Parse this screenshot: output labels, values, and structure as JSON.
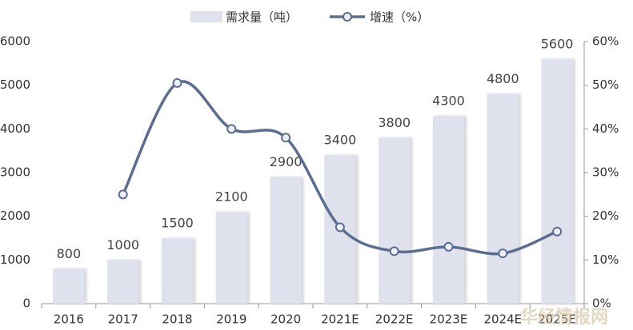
{
  "chart_data": {
    "type": "bar-line",
    "categories": [
      "2016",
      "2017",
      "2018",
      "2019",
      "2020",
      "2021E",
      "2022E",
      "2023E",
      "2024E",
      "2025E"
    ],
    "series": [
      {
        "name": "需求量（吨）",
        "type": "bar",
        "color": "#dfe1ec",
        "values": [
          800,
          1000,
          1500,
          2100,
          2900,
          3400,
          3800,
          4300,
          4800,
          5600
        ]
      },
      {
        "name": "增速（%）",
        "type": "line",
        "color": "#5b6e91",
        "axis": "y2",
        "values": [
          null,
          25,
          50.5,
          40,
          38,
          17.5,
          12,
          13,
          11.5,
          16.5
        ]
      }
    ],
    "ylim": [
      0,
      6000
    ],
    "yticks": [
      0,
      1000,
      2000,
      3000,
      4000,
      5000,
      6000
    ],
    "y2lim": [
      0,
      60
    ],
    "y2ticks": [
      {
        "value": 0,
        "label": "0%"
      },
      {
        "value": 10,
        "label": "10%"
      },
      {
        "value": 20,
        "label": "20%"
      },
      {
        "value": 30,
        "label": "30%"
      },
      {
        "value": 40,
        "label": "40%"
      },
      {
        "value": 50,
        "label": "50%"
      },
      {
        "value": 60,
        "label": "60%"
      }
    ],
    "legend": "top",
    "watermark": "华经情报网"
  }
}
